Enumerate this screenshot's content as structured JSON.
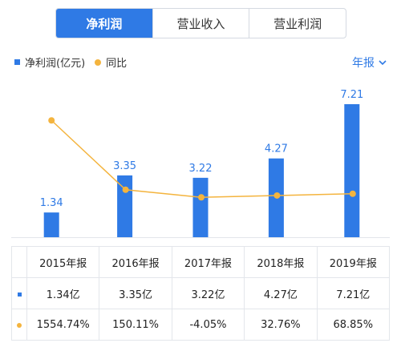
{
  "tabs": [
    "净利润",
    "营业收入",
    "营业利润"
  ],
  "legend": {
    "bar_label": "净利润(亿元)",
    "line_label": "同比"
  },
  "period_selector": "年报",
  "colors": {
    "bar": "#2f7ae5",
    "line": "#f4b43e",
    "positive": "#e83c3c",
    "negative": "#1aa34a"
  },
  "chart_data": {
    "type": "bar",
    "categories": [
      "2015年报",
      "2016年报",
      "2017年报",
      "2018年报",
      "2019年报"
    ],
    "series": [
      {
        "name": "净利润(亿元)",
        "type": "bar",
        "values": [
          1.34,
          3.35,
          3.22,
          4.27,
          7.21
        ],
        "labels": [
          "1.34",
          "3.35",
          "3.22",
          "4.27",
          "7.21"
        ]
      },
      {
        "name": "同比",
        "type": "line",
        "values": [
          1554.74,
          150.11,
          -4.05,
          32.76,
          68.85
        ]
      }
    ]
  },
  "table": {
    "headers": [
      "2015年报",
      "2016年报",
      "2017年报",
      "2018年报",
      "2019年报"
    ],
    "bar_row": [
      "1.34亿",
      "3.35亿",
      "3.22亿",
      "4.27亿",
      "7.21亿"
    ],
    "yoy_row": [
      "1554.74%",
      "150.11%",
      "-4.05%",
      "32.76%",
      "68.85%"
    ]
  }
}
